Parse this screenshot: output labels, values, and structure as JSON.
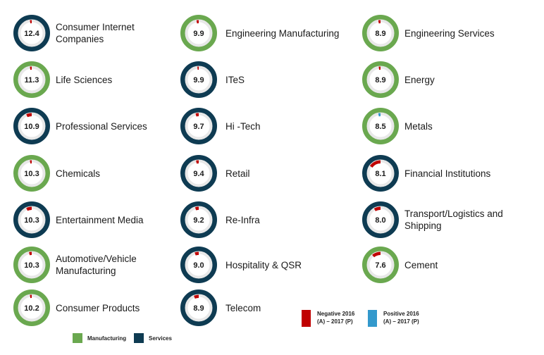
{
  "colors": {
    "manufacturing": "#6aa84f",
    "services": "#0e3b52",
    "negative": "#c00000",
    "positive": "#3399cc",
    "track": "#e8e8e8"
  },
  "chart_data": {
    "type": "donut-grid",
    "items": [
      {
        "value": 12.4,
        "label": "Consumer Internet Companies",
        "group": "services",
        "change": "negative",
        "change_deg": 8
      },
      {
        "value": 11.3,
        "label": "Life Sciences",
        "group": "manufacturing",
        "change": "negative",
        "change_deg": 8
      },
      {
        "value": 10.9,
        "label": "Professional Services",
        "group": "services",
        "change": "negative",
        "change_deg": 25
      },
      {
        "value": 10.3,
        "label": "Chemicals",
        "group": "manufacturing",
        "change": "negative",
        "change_deg": 8
      },
      {
        "value": 10.3,
        "label": "Entertainment Media",
        "group": "services",
        "change": "negative",
        "change_deg": 25
      },
      {
        "value": 10.3,
        "label": "Automotive/Vehicle Manufacturing",
        "group": "manufacturing",
        "change": "negative",
        "change_deg": 12
      },
      {
        "value": 10.2,
        "label": "Consumer Products",
        "group": "manufacturing",
        "change": "negative",
        "change_deg": 8
      },
      {
        "value": 9.9,
        "label": "Engineering Manufacturing",
        "group": "manufacturing",
        "change": "negative",
        "change_deg": 10
      },
      {
        "value": 9.9,
        "label": "ITeS",
        "group": "services",
        "change": "negative",
        "change_deg": 6
      },
      {
        "value": 9.7,
        "label": "Hi -Tech",
        "group": "services",
        "change": "negative",
        "change_deg": 14
      },
      {
        "value": 9.4,
        "label": "Retail",
        "group": "services",
        "change": "negative",
        "change_deg": 12
      },
      {
        "value": 9.2,
        "label": "Re-Infra",
        "group": "services",
        "change": "negative",
        "change_deg": 16
      },
      {
        "value": 9.0,
        "label": "Hospitality & QSR",
        "group": "services",
        "change": "negative",
        "change_deg": 18
      },
      {
        "value": 8.9,
        "label": "Telecom",
        "group": "services",
        "change": "negative",
        "change_deg": 22
      },
      {
        "value": 8.9,
        "label": "Engineering Services",
        "group": "manufacturing",
        "change": "negative",
        "change_deg": 10
      },
      {
        "value": 8.9,
        "label": "Energy",
        "group": "manufacturing",
        "change": "negative",
        "change_deg": 8
      },
      {
        "value": 8.5,
        "label": "Metals",
        "group": "manufacturing",
        "change": "positive",
        "change_deg": 10
      },
      {
        "value": 8.1,
        "label": "Financial Institutions",
        "group": "services",
        "change": "negative",
        "change_deg": 55
      },
      {
        "value": 8.0,
        "label": "Transport/Logistics and Shipping",
        "group": "services",
        "change": "negative",
        "change_deg": 30
      },
      {
        "value": 7.6,
        "label": "Cement",
        "group": "manufacturing",
        "change": "negative",
        "change_deg": 40
      }
    ],
    "legend_groups": [
      {
        "key": "manufacturing",
        "label": "Manufacturing"
      },
      {
        "key": "services",
        "label": "Services"
      }
    ],
    "legend_change": [
      {
        "key": "negative",
        "label_line1": "Negative 2016",
        "label_line2": "(A) – 2017 (P)"
      },
      {
        "key": "positive",
        "label_line1": "Positive 2016",
        "label_line2": "(A) – 2017 (P)"
      }
    ]
  }
}
